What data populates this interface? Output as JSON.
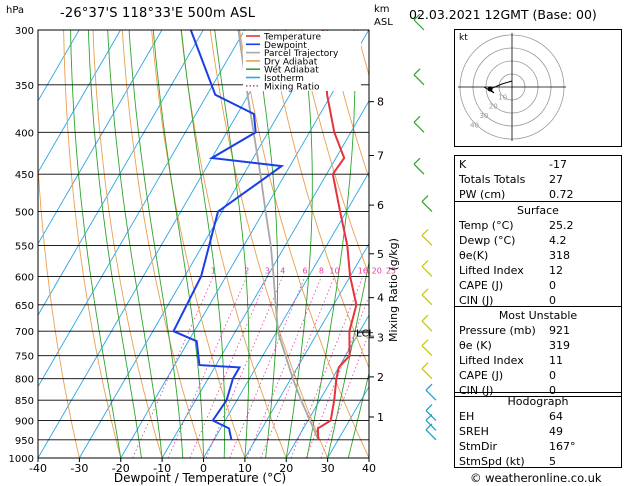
{
  "header": {
    "location": "-26°37'S  118°33'E  500m  ASL",
    "datetime": "02.03.2021  12GMT  (Base: 00)",
    "pressure_unit": "hPa",
    "height_unit_km": "km",
    "height_unit_asl": "ASL",
    "credit": "© weatheronline.co.uk"
  },
  "chart_data": {
    "type": "skew-t",
    "xlabel": "Dewpoint / Temperature (°C)",
    "ylabel_right": "Mixing Ratio (g/kg)",
    "x_ticks": [
      -40,
      -30,
      -20,
      -10,
      0,
      10,
      20,
      30,
      40
    ],
    "xlim": [
      -40,
      40
    ],
    "pressure_levels": [
      300,
      350,
      400,
      450,
      500,
      550,
      600,
      650,
      700,
      750,
      800,
      850,
      900,
      950,
      1000
    ],
    "ylim_hpa": [
      1000,
      300
    ],
    "km_ticks": [
      {
        "label": "8",
        "p": 367
      },
      {
        "label": "7",
        "p": 427
      },
      {
        "label": "6",
        "p": 491
      },
      {
        "label": "5",
        "p": 563
      },
      {
        "label": "4",
        "p": 637
      },
      {
        "label": "3",
        "p": 713
      },
      {
        "label": "2",
        "p": 796
      },
      {
        "label": "1",
        "p": 891
      }
    ],
    "lcl": {
      "label": "LCL",
      "p": 703
    },
    "mixing_ratio_labels": [
      "1",
      "2",
      "3",
      "4",
      "6",
      "8",
      "10",
      "16",
      "20",
      "25"
    ],
    "legend": [
      "Temperature",
      "Dewpoint",
      "Parcel Trajectory",
      "Dry Adiabat",
      "Wet Adiabat",
      "Isotherm",
      "Mixing Ratio"
    ],
    "colors": {
      "temperature": "#e8323c",
      "dewpoint": "#1a3ee6",
      "parcel": "#a8a8a8",
      "dry_adiabat": "#e8a050",
      "wet_adiabat": "#2ea52e",
      "isotherm": "#2aa6e6",
      "mixing_ratio": "#e040a0"
    },
    "temperature_profile": [
      {
        "p": 950,
        "t": 25.2
      },
      {
        "p": 920,
        "t": 23.5
      },
      {
        "p": 900,
        "t": 25.5
      },
      {
        "p": 850,
        "t": 23.5
      },
      {
        "p": 800,
        "t": 21
      },
      {
        "p": 775,
        "t": 20
      },
      {
        "p": 750,
        "t": 21
      },
      {
        "p": 700,
        "t": 17.5
      },
      {
        "p": 650,
        "t": 15.5
      },
      {
        "p": 600,
        "t": 10
      },
      {
        "p": 550,
        "t": 5
      },
      {
        "p": 500,
        "t": -1.5
      },
      {
        "p": 450,
        "t": -8.5
      },
      {
        "p": 430,
        "t": -8
      },
      {
        "p": 400,
        "t": -14
      },
      {
        "p": 360,
        "t": -21
      },
      {
        "p": 340,
        "t": -24
      },
      {
        "p": 300,
        "t": -31
      }
    ],
    "dewpoint_profile": [
      {
        "p": 950,
        "t": 4.2
      },
      {
        "p": 920,
        "t": 2
      },
      {
        "p": 900,
        "t": -3
      },
      {
        "p": 850,
        "t": -2.5
      },
      {
        "p": 800,
        "t": -4
      },
      {
        "p": 775,
        "t": -4
      },
      {
        "p": 770,
        "t": -14
      },
      {
        "p": 720,
        "t": -18
      },
      {
        "p": 700,
        "t": -25
      },
      {
        "p": 600,
        "t": -26
      },
      {
        "p": 500,
        "t": -31
      },
      {
        "p": 440,
        "t": -22
      },
      {
        "p": 430,
        "t": -40
      },
      {
        "p": 400,
        "t": -33
      },
      {
        "p": 380,
        "t": -36
      },
      {
        "p": 360,
        "t": -48
      },
      {
        "p": 300,
        "t": -63
      }
    ],
    "parcel_profile": [
      {
        "p": 950,
        "t": 25.2
      },
      {
        "p": 900,
        "t": 20.5
      },
      {
        "p": 850,
        "t": 15.5
      },
      {
        "p": 800,
        "t": 10.5
      },
      {
        "p": 750,
        "t": 5.5
      },
      {
        "p": 703,
        "t": 0.5
      },
      {
        "p": 650,
        "t": -4
      },
      {
        "p": 600,
        "t": -8.5
      },
      {
        "p": 550,
        "t": -13.5
      },
      {
        "p": 500,
        "t": -19.5
      },
      {
        "p": 450,
        "t": -26
      },
      {
        "p": 400,
        "t": -33.5
      },
      {
        "p": 350,
        "t": -42
      },
      {
        "p": 300,
        "t": -51.5
      }
    ]
  },
  "hodograph": {
    "label": "kt",
    "rings": [
      "10",
      "20",
      "30",
      "40"
    ]
  },
  "indices": {
    "rows": [
      {
        "k": "K",
        "v": "-17"
      },
      {
        "k": "Totals Totals",
        "v": "27"
      },
      {
        "k": "PW (cm)",
        "v": "0.72"
      }
    ]
  },
  "surface": {
    "title": "Surface",
    "rows": [
      {
        "k": "Temp (°C)",
        "v": "25.2"
      },
      {
        "k": "Dewp (°C)",
        "v": "4.2"
      },
      {
        "k": "θe(K)",
        "v": "318"
      },
      {
        "k": "Lifted Index",
        "v": "12"
      },
      {
        "k": "CAPE (J)",
        "v": "0"
      },
      {
        "k": "CIN (J)",
        "v": "0"
      }
    ]
  },
  "most_unstable": {
    "title": "Most Unstable",
    "rows": [
      {
        "k": "Pressure (mb)",
        "v": "921"
      },
      {
        "k": "θe (K)",
        "v": "319"
      },
      {
        "k": "Lifted Index",
        "v": "11"
      },
      {
        "k": "CAPE (J)",
        "v": "0"
      },
      {
        "k": "CIN (J)",
        "v": "0"
      }
    ]
  },
  "hodograph_table": {
    "title": "Hodograph",
    "rows": [
      {
        "k": "EH",
        "v": "64"
      },
      {
        "k": "SREH",
        "v": "49"
      },
      {
        "k": "StmDir",
        "v": "167°"
      },
      {
        "k": "StmSpd (kt)",
        "v": "5"
      }
    ]
  }
}
